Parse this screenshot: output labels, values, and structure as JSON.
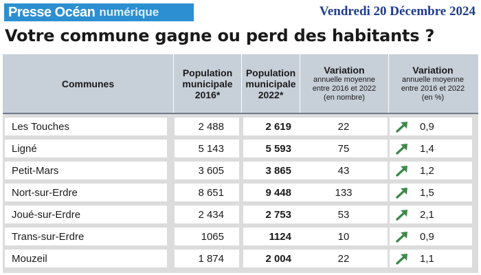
{
  "header": {
    "brand": "Presse Océan",
    "brand_sub": "numérique",
    "date": "Vendredi 20 Décembre 2024",
    "headline": "Votre commune gagne ou perd des habitants ?"
  },
  "colors": {
    "brand_blue": "#2c8fd1",
    "date_blue": "#1f3d8a",
    "header_gray": "#c7cfd8",
    "arrow_green": "#3d8a4a"
  },
  "table": {
    "columns": {
      "commune": "Communes",
      "pop2016": [
        "Population",
        "municipale",
        "2016*"
      ],
      "pop2022": [
        "Population",
        "municipale",
        "2022*"
      ],
      "var_nombre": [
        "Variation",
        "annuelle moyenne",
        "entre 2016 et 2022",
        "(en nombre)"
      ],
      "var_pct": [
        "Variation",
        "annuelle moyenne",
        "entre 2016 et 2022",
        "(en %)"
      ]
    },
    "rows": [
      {
        "commune": "Les Touches",
        "pop2016": "2 488",
        "pop2022": "2 619",
        "var_nombre": "22",
        "var_pct": "0,9",
        "trend_icon": "arrow-up-right-icon"
      },
      {
        "commune": "Ligné",
        "pop2016": "5 143",
        "pop2022": "5 593",
        "var_nombre": "75",
        "var_pct": "1,4",
        "trend_icon": "arrow-up-right-icon"
      },
      {
        "commune": "Petit-Mars",
        "pop2016": "3 605",
        "pop2022": "3 865",
        "var_nombre": "43",
        "var_pct": "1,2",
        "trend_icon": "arrow-up-right-icon"
      },
      {
        "commune": "Nort-sur-Erdre",
        "pop2016": "8 651",
        "pop2022": "9 448",
        "var_nombre": "133",
        "var_pct": "1,5",
        "trend_icon": "arrow-up-right-icon"
      },
      {
        "commune": "Joué-sur-Erdre",
        "pop2016": "2 434",
        "pop2022": "2 753",
        "var_nombre": "53",
        "var_pct": "2,1",
        "trend_icon": "arrow-up-right-icon"
      },
      {
        "commune": "Trans-sur-Erdre",
        "pop2016": "1065",
        "pop2022": "1124",
        "var_nombre": "10",
        "var_pct": "0,9",
        "trend_icon": "arrow-up-right-icon"
      },
      {
        "commune": "Mouzeil",
        "pop2016": "1 874",
        "pop2022": "2 004",
        "var_nombre": "22",
        "var_pct": "1,1",
        "trend_icon": "arrow-up-right-icon"
      }
    ]
  }
}
